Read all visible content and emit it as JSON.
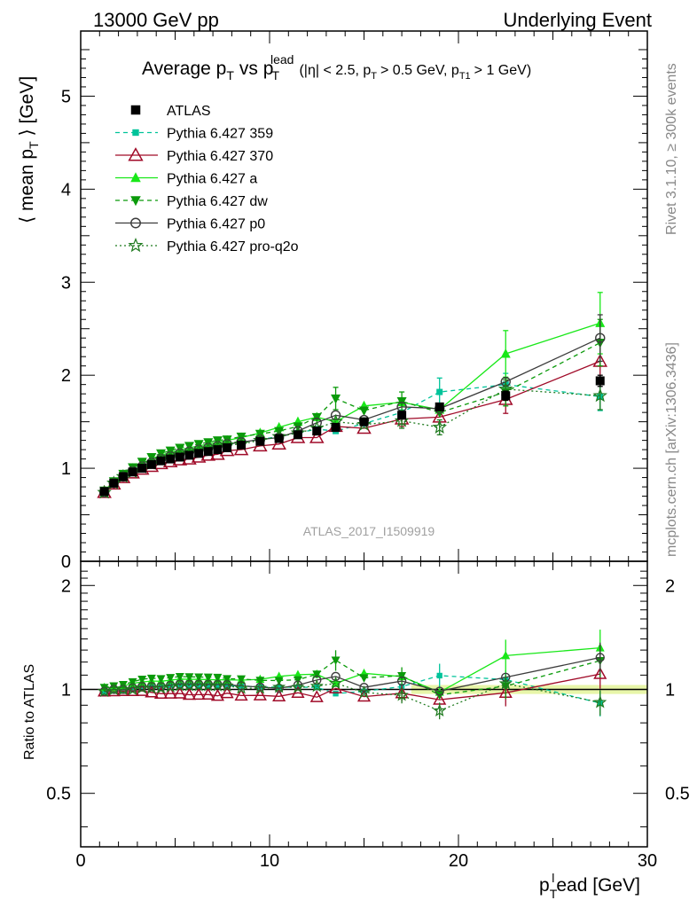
{
  "header": {
    "left": "13000 GeV pp",
    "right": "Underlying Event"
  },
  "title": {
    "main": "Average p",
    "sub_T": "T",
    "vs": "vs p",
    "sup_lead": "lead",
    "cuts_a": "(|η| < 2.5, p",
    "cuts_b": "> 0.5 GeV, p",
    "cuts_sub": "T1",
    "cuts_c": "> 1 GeV)"
  },
  "side_labels": {
    "rivet": "Rivet 3.1.10, ≥ 300k events",
    "mcplots": "mcplots.cern.ch [arXiv:1306.3436]"
  },
  "watermark": "ATLAS_2017_I1509919",
  "colors": {
    "atlas": "#000000",
    "p359": "#00c39a",
    "p370": "#a00a28",
    "pa": "#18e818",
    "pdw": "#0a9a0a",
    "pp0": "#3c3c3c",
    "pq2o": "#1f7a1f",
    "band": "#e6f5a0"
  },
  "chart_data": {
    "type": "line",
    "title": "Average pT vs pT^lead (|η| < 2.5, pT > 0.5 GeV, pT1 > 1 GeV)",
    "ylabel": "⟨ mean p_T ⟩ [GeV]",
    "xlabel": "p_T^lead [GeV]",
    "ratio_ylabel": "Ratio to ATLAS",
    "xlim": [
      0,
      30
    ],
    "ylim": [
      0,
      5.7
    ],
    "ratio_ylim": [
      0.35,
      2.35
    ],
    "ratio_log": true,
    "x_ticks": [
      "0",
      "10",
      "20",
      "30"
    ],
    "y_ticks": [
      "0",
      "1",
      "2",
      "3",
      "4",
      "5"
    ],
    "ratio_ticks": [
      "0.5",
      "1",
      "2"
    ],
    "legend_position": "top-left",
    "x": [
      1.25,
      1.75,
      2.25,
      2.75,
      3.25,
      3.75,
      4.25,
      4.75,
      5.25,
      5.75,
      6.25,
      6.75,
      7.25,
      7.75,
      8.5,
      9.5,
      10.5,
      11.5,
      12.5,
      13.5,
      15.0,
      17.0,
      19.0,
      22.5,
      27.5
    ],
    "series": [
      {
        "name": "ATLAS",
        "key": "atlas",
        "marker": "square-filled",
        "line": "none",
        "values": [
          0.75,
          0.84,
          0.91,
          0.96,
          1.0,
          1.04,
          1.08,
          1.1,
          1.12,
          1.14,
          1.16,
          1.18,
          1.2,
          1.22,
          1.25,
          1.29,
          1.32,
          1.36,
          1.4,
          1.44,
          1.5,
          1.57,
          1.66,
          1.78,
          1.94
        ]
      },
      {
        "name": "Pythia 6.427 359",
        "key": "p359",
        "marker": "square-filled-small",
        "line": "dashed",
        "values": [
          0.74,
          0.84,
          0.91,
          0.97,
          1.02,
          1.06,
          1.1,
          1.13,
          1.15,
          1.17,
          1.19,
          1.21,
          1.23,
          1.25,
          1.28,
          1.31,
          1.34,
          1.38,
          1.42,
          1.4,
          1.48,
          1.6,
          1.82,
          1.9,
          1.77
        ]
      },
      {
        "name": "Pythia 6.427 370",
        "key": "p370",
        "marker": "triangle-open",
        "line": "solid",
        "values": [
          0.74,
          0.83,
          0.9,
          0.95,
          0.99,
          1.02,
          1.05,
          1.07,
          1.09,
          1.1,
          1.12,
          1.14,
          1.15,
          1.19,
          1.2,
          1.24,
          1.26,
          1.33,
          1.33,
          1.45,
          1.43,
          1.53,
          1.55,
          1.74,
          2.15
        ]
      },
      {
        "name": "Pythia 6.427 a",
        "key": "pa",
        "marker": "triangle-filled",
        "line": "solid",
        "values": [
          0.76,
          0.85,
          0.93,
          1.0,
          1.05,
          1.1,
          1.14,
          1.17,
          1.2,
          1.22,
          1.24,
          1.26,
          1.28,
          1.3,
          1.33,
          1.38,
          1.44,
          1.5,
          1.55,
          1.5,
          1.67,
          1.71,
          1.63,
          2.23,
          2.56
        ]
      },
      {
        "name": "Pythia 6.427 dw",
        "key": "pdw",
        "marker": "triangle-down-filled",
        "line": "dashed",
        "values": [
          0.76,
          0.86,
          0.94,
          1.01,
          1.07,
          1.12,
          1.16,
          1.19,
          1.22,
          1.24,
          1.26,
          1.28,
          1.3,
          1.31,
          1.34,
          1.37,
          1.4,
          1.45,
          1.55,
          1.75,
          1.62,
          1.72,
          1.6,
          1.82,
          2.35
        ]
      },
      {
        "name": "Pythia 6.427 p0",
        "key": "pp0",
        "marker": "circle-open",
        "line": "solid",
        "values": [
          0.74,
          0.84,
          0.91,
          0.97,
          1.02,
          1.06,
          1.1,
          1.13,
          1.16,
          1.18,
          1.2,
          1.22,
          1.24,
          1.26,
          1.28,
          1.31,
          1.33,
          1.4,
          1.49,
          1.57,
          1.52,
          1.66,
          1.64,
          1.93,
          2.4
        ]
      },
      {
        "name": "Pythia 6.427 pro-q2o",
        "key": "pq2o",
        "marker": "star-open",
        "line": "dotted",
        "values": [
          0.74,
          0.84,
          0.91,
          0.96,
          1.01,
          1.05,
          1.09,
          1.12,
          1.15,
          1.17,
          1.19,
          1.21,
          1.23,
          1.25,
          1.26,
          1.3,
          1.34,
          1.38,
          1.43,
          1.5,
          1.47,
          1.51,
          1.44,
          1.85,
          1.78
        ]
      }
    ],
    "error_bars": {
      "p359": [
        [
          23,
          0.12
        ],
        [
          22,
          0.15
        ],
        [
          24,
          0.15
        ]
      ],
      "pa": [
        [
          23,
          0.25
        ],
        [
          24,
          0.33
        ]
      ],
      "pdw": [
        [
          19,
          0.12
        ],
        [
          21,
          0.1
        ],
        [
          23,
          0.15
        ],
        [
          24,
          0.25
        ]
      ],
      "p370": [
        [
          21,
          0.08
        ],
        [
          23,
          0.15
        ],
        [
          24,
          0.2
        ]
      ],
      "pp0": [
        [
          24,
          0.25
        ]
      ],
      "pq2o": [
        [
          21,
          0.08
        ],
        [
          22,
          0.08
        ],
        [
          23,
          0.1
        ],
        [
          24,
          0.15
        ]
      ],
      "atlas": [
        [
          23,
          0.05
        ],
        [
          24,
          0.06
        ]
      ]
    }
  }
}
